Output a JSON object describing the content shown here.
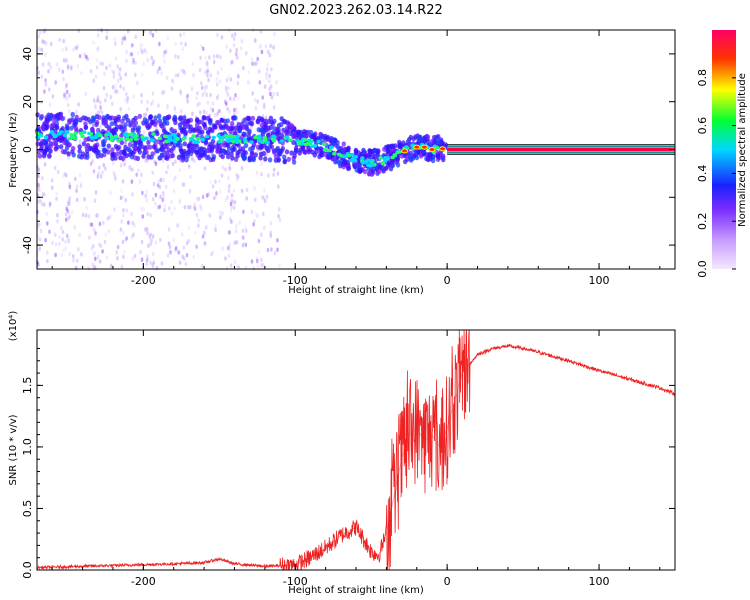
{
  "title": "GN02.2023.262.03.14.R22",
  "chart_data": [
    {
      "type": "heatmap",
      "xlabel": "Height of straight line (km)",
      "ylabel": "Frequency (Hz)",
      "xlim": [
        -270,
        150
      ],
      "ylim": [
        -50,
        50
      ],
      "x_ticks": [
        -200,
        -100,
        0,
        100
      ],
      "x_tick_labels": [
        "-200",
        "-100",
        "0",
        "100"
      ],
      "y_ticks": [
        -40,
        -20,
        0,
        20,
        40
      ],
      "y_tick_labels": [
        "-40",
        "-20",
        "0",
        "20",
        "40"
      ],
      "colorbar": {
        "label": "Normalized spectral amplitude",
        "range": [
          0,
          1
        ],
        "ticks": [
          0.0,
          0.2,
          0.4,
          0.6,
          0.8
        ],
        "tick_labels": [
          "0.0",
          "0.2",
          "0.4",
          "0.6",
          "0.8"
        ],
        "colors": [
          "#e8d4ff",
          "#8a2be2",
          "#1a1aff",
          "#00e5ff",
          "#00ff33",
          "#ffff00",
          "#ff3300",
          "#ff0066"
        ]
      },
      "ridge": {
        "x": [
          -270,
          -250,
          -230,
          -210,
          -190,
          -170,
          -150,
          -130,
          -110,
          -100,
          -90,
          -80,
          -70,
          -60,
          -55,
          -50,
          -45,
          -40,
          -35,
          -30,
          -25,
          -20,
          -15,
          -10,
          -5,
          0,
          50,
          100,
          150
        ],
        "y": [
          6,
          6,
          5.5,
          5,
          5,
          4.5,
          4.5,
          4.5,
          4,
          3.5,
          3,
          1,
          -2,
          -4,
          -5,
          -5.5,
          -5,
          -4,
          -3,
          -1,
          0,
          1,
          1,
          0,
          0.5,
          0,
          0,
          0,
          0
        ]
      },
      "noise_region_x": [
        -270,
        -110
      ],
      "narrow_line_x": [
        0,
        150
      ],
      "narrow_line_y": 0
    },
    {
      "type": "line",
      "xlabel": "Height of straight line (km)",
      "ylabel": "SNR (10 * v/v)",
      "yscale_label": "(x10⁴)",
      "xlim": [
        -270,
        150
      ],
      "ylim": [
        0,
        1.95
      ],
      "x_ticks": [
        -200,
        -100,
        0,
        100
      ],
      "x_tick_labels": [
        "-200",
        "-100",
        "0",
        "100"
      ],
      "y_ticks": [
        0.0,
        0.5,
        1.0,
        1.5
      ],
      "y_tick_labels": [
        "0.0",
        "0.5",
        "1.0",
        "1.5"
      ],
      "series": [
        {
          "color": "#ee2222",
          "x": [
            -270,
            -240,
            -210,
            -180,
            -160,
            -150,
            -140,
            -120,
            -100,
            -90,
            -80,
            -70,
            -60,
            -50,
            -45,
            -40,
            -35,
            -30,
            -25,
            -20,
            -15,
            -10,
            -5,
            0,
            10,
            20,
            30,
            40,
            50,
            60,
            80,
            100,
            120,
            140,
            150
          ],
          "y": [
            0.02,
            0.03,
            0.04,
            0.05,
            0.06,
            0.09,
            0.05,
            0.03,
            0.04,
            0.1,
            0.18,
            0.28,
            0.35,
            0.15,
            0.12,
            0.3,
            0.6,
            0.9,
            1.1,
            1.15,
            1.05,
            1.1,
            1.0,
            1.15,
            1.6,
            1.75,
            1.8,
            1.82,
            1.8,
            1.77,
            1.7,
            1.62,
            1.55,
            1.48,
            1.43
          ]
        }
      ]
    }
  ]
}
